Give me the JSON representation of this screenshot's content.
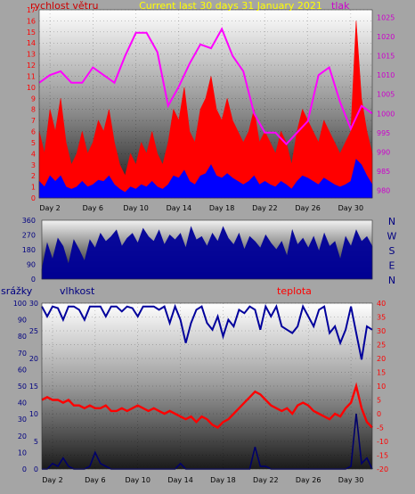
{
  "chart_data": [
    {
      "type": "line",
      "title": "Current last 30 days 31 January 2021",
      "ylabel": "rychlost větru",
      "y2label": "tlak",
      "ylim": [
        0,
        17
      ],
      "y2lim": [
        978,
        1027
      ],
      "yticks": [
        0,
        1,
        2,
        3,
        4,
        5,
        6,
        7,
        8,
        9,
        10,
        11,
        12,
        13,
        14,
        15,
        16,
        17
      ],
      "y2ticks": [
        980,
        985,
        990,
        995,
        1000,
        1005,
        1010,
        1015,
        1020,
        1025
      ],
      "xticks": [
        "Day 2",
        "Day 6",
        "Day 10",
        "Day 14",
        "Day 18",
        "Day 22",
        "Day 26",
        "Day 30"
      ],
      "xtick_days": [
        2,
        6,
        10,
        14,
        18,
        22,
        26,
        30
      ],
      "xlim": [
        1,
        32
      ],
      "series": [
        {
          "name": "rychlost větru",
          "color": "#ff0000",
          "x": [
            1.0,
            1.5,
            2.0,
            2.5,
            3.0,
            3.5,
            4.0,
            4.5,
            5.0,
            5.5,
            6.0,
            6.5,
            7.0,
            7.5,
            8.0,
            8.5,
            9.0,
            9.5,
            10.0,
            10.5,
            11.0,
            11.5,
            12.0,
            12.5,
            13.0,
            13.5,
            14.0,
            14.5,
            15.0,
            15.5,
            16.0,
            16.5,
            17.0,
            17.5,
            18.0,
            18.5,
            19.0,
            19.5,
            20.0,
            20.5,
            21.0,
            21.5,
            22.0,
            22.5,
            23.0,
            23.5,
            24.0,
            24.5,
            25.0,
            25.5,
            26.0,
            26.5,
            27.0,
            27.5,
            28.0,
            28.5,
            29.0,
            29.5,
            30.0,
            30.5,
            31.0,
            31.5,
            32.0
          ],
          "values": [
            6,
            4,
            8,
            6,
            9,
            5,
            3,
            4,
            6,
            4,
            5,
            7,
            6,
            8,
            5,
            3,
            2,
            4,
            3,
            5,
            4,
            6,
            4,
            3,
            5,
            8,
            7,
            10,
            6,
            5,
            8,
            9,
            11,
            8,
            7,
            9,
            7,
            6,
            5,
            6,
            8,
            5,
            6,
            5,
            4,
            6,
            5,
            3,
            6,
            8,
            7,
            6,
            5,
            7,
            6,
            5,
            4,
            5,
            6,
            16,
            9,
            6,
            4
          ]
        },
        {
          "name": "wind-gust-blue",
          "color": "#0000ff",
          "x": [
            1.0,
            1.5,
            2.0,
            2.5,
            3.0,
            3.5,
            4.0,
            4.5,
            5.0,
            5.5,
            6.0,
            6.5,
            7.0,
            7.5,
            8.0,
            8.5,
            9.0,
            9.5,
            10.0,
            10.5,
            11.0,
            11.5,
            12.0,
            12.5,
            13.0,
            13.5,
            14.0,
            14.5,
            15.0,
            15.5,
            16.0,
            16.5,
            17.0,
            17.5,
            18.0,
            18.5,
            19.0,
            19.5,
            20.0,
            20.5,
            21.0,
            21.5,
            22.0,
            22.5,
            23.0,
            23.5,
            24.0,
            24.5,
            25.0,
            25.5,
            26.0,
            26.5,
            27.0,
            27.5,
            28.0,
            28.5,
            29.0,
            29.5,
            30.0,
            30.5,
            31.0,
            31.5,
            32.0
          ],
          "values": [
            1.5,
            1,
            2,
            1.5,
            2,
            1,
            0.8,
            1,
            1.5,
            1,
            1.2,
            1.6,
            1.5,
            2,
            1.2,
            0.8,
            0.5,
            1,
            0.8,
            1.2,
            1,
            1.5,
            1,
            0.8,
            1.2,
            2,
            1.8,
            2.5,
            1.5,
            1.2,
            2,
            2.2,
            3,
            2,
            1.8,
            2.2,
            1.8,
            1.5,
            1.2,
            1.5,
            2,
            1.2,
            1.5,
            1.2,
            1,
            1.5,
            1.2,
            0.8,
            1.5,
            2,
            1.8,
            1.5,
            1.2,
            1.8,
            1.5,
            1.2,
            1,
            1.2,
            1.5,
            3.5,
            3,
            2,
            1.2
          ]
        },
        {
          "name": "tlak",
          "color": "#ff00ff",
          "axis": "right",
          "x": [
            1,
            2,
            3,
            4,
            5,
            6,
            7,
            8,
            9,
            10,
            11,
            12,
            13,
            14,
            15,
            16,
            17,
            18,
            19,
            20,
            21,
            22,
            23,
            24,
            25,
            26,
            27,
            28,
            29,
            30,
            31,
            32
          ],
          "values": [
            1008,
            1010,
            1011,
            1008,
            1008,
            1012,
            1010,
            1008,
            1015,
            1021,
            1021,
            1016,
            1002,
            1007,
            1013,
            1018,
            1017,
            1022,
            1015,
            1011,
            1000,
            995,
            995,
            992,
            995,
            998,
            1010,
            1012,
            1003,
            996,
            1002,
            1000
          ]
        }
      ]
    },
    {
      "type": "line",
      "title": "",
      "ylim": [
        0,
        360
      ],
      "yticks": [
        0,
        90,
        180,
        270,
        360
      ],
      "compass": [
        "N",
        "W",
        "S",
        "E",
        "N"
      ],
      "xlim": [
        1,
        32
      ],
      "series": [
        {
          "name": "wind-direction",
          "color": "#000099",
          "x": [
            1.0,
            1.5,
            2.0,
            2.5,
            3.0,
            3.5,
            4.0,
            4.5,
            5.0,
            5.5,
            6.0,
            6.5,
            7.0,
            7.5,
            8.0,
            8.5,
            9.0,
            9.5,
            10.0,
            10.5,
            11.0,
            11.5,
            12.0,
            12.5,
            13.0,
            13.5,
            14.0,
            14.5,
            15.0,
            15.5,
            16.0,
            16.5,
            17.0,
            17.5,
            18.0,
            18.5,
            19.0,
            19.5,
            20.0,
            20.5,
            21.0,
            21.5,
            22.0,
            22.5,
            23.0,
            23.5,
            24.0,
            24.5,
            25.0,
            25.5,
            26.0,
            26.5,
            27.0,
            27.5,
            28.0,
            28.5,
            29.0,
            29.5,
            30.0,
            30.5,
            31.0,
            31.5,
            32.0
          ],
          "values": [
            60,
            220,
            120,
            250,
            200,
            90,
            240,
            180,
            110,
            240,
            190,
            280,
            230,
            260,
            300,
            200,
            250,
            280,
            220,
            310,
            260,
            230,
            300,
            210,
            270,
            240,
            280,
            190,
            320,
            240,
            260,
            200,
            280,
            230,
            320,
            250,
            210,
            280,
            180,
            260,
            230,
            190,
            270,
            220,
            180,
            230,
            140,
            300,
            210,
            250,
            190,
            260,
            170,
            280,
            200,
            230,
            120,
            260,
            200,
            300,
            230,
            260,
            200
          ]
        }
      ]
    },
    {
      "type": "line",
      "title": "",
      "ylabel": "srážky",
      "y2label": "vlhkost",
      "y3label": "teplota",
      "yticks_humidity": [
        0,
        10,
        20,
        30,
        40,
        50,
        60,
        70,
        80,
        90,
        100
      ],
      "yticks_rain": [
        0,
        5,
        10,
        15,
        20,
        25,
        30
      ],
      "yticks_temp": [
        -20,
        -15,
        -10,
        -5,
        0,
        5,
        10,
        15,
        20,
        25,
        30,
        35,
        40
      ],
      "ylim_humidity": [
        0,
        100
      ],
      "ylim_rain": [
        0,
        30
      ],
      "ylim_temp": [
        -20,
        40
      ],
      "xlim": [
        1,
        32
      ],
      "series": [
        {
          "name": "vlhkost",
          "color": "#00009c",
          "x": [
            1.0,
            1.5,
            2.0,
            2.5,
            3.0,
            3.5,
            4.0,
            4.5,
            5.0,
            5.5,
            6.0,
            6.5,
            7.0,
            7.5,
            8.0,
            8.5,
            9.0,
            9.5,
            10.0,
            10.5,
            11.0,
            11.5,
            12.0,
            12.5,
            13.0,
            13.5,
            14.0,
            14.5,
            15.0,
            15.5,
            16.0,
            16.5,
            17.0,
            17.5,
            18.0,
            18.5,
            19.0,
            19.5,
            20.0,
            20.5,
            21.0,
            21.5,
            22.0,
            22.5,
            23.0,
            23.5,
            24.0,
            24.5,
            25.0,
            25.5,
            26.0,
            26.5,
            27.0,
            27.5,
            28.0,
            28.5,
            29.0,
            29.5,
            30.0,
            30.5,
            31.0,
            31.5,
            32.0
          ],
          "values": [
            98,
            92,
            98,
            97,
            90,
            98,
            98,
            96,
            90,
            98,
            98,
            98,
            92,
            98,
            98,
            95,
            98,
            97,
            92,
            98,
            98,
            98,
            96,
            98,
            88,
            98,
            90,
            76,
            88,
            96,
            98,
            88,
            84,
            92,
            80,
            90,
            86,
            96,
            94,
            98,
            96,
            84,
            98,
            92,
            98,
            86,
            84,
            82,
            86,
            98,
            92,
            86,
            96,
            98,
            82,
            86,
            76,
            84,
            98,
            82,
            66,
            86,
            84
          ]
        },
        {
          "name": "teplota",
          "color": "#ff0000",
          "x": [
            1.0,
            1.5,
            2.0,
            2.5,
            3.0,
            3.5,
            4.0,
            4.5,
            5.0,
            5.5,
            6.0,
            6.5,
            7.0,
            7.5,
            8.0,
            8.5,
            9.0,
            9.5,
            10.0,
            10.5,
            11.0,
            11.5,
            12.0,
            12.5,
            13.0,
            13.5,
            14.0,
            14.5,
            15.0,
            15.5,
            16.0,
            16.5,
            17.0,
            17.5,
            18.0,
            18.5,
            19.0,
            19.5,
            20.0,
            20.5,
            21.0,
            21.5,
            22.0,
            22.5,
            23.0,
            23.5,
            24.0,
            24.5,
            25.0,
            25.5,
            26.0,
            26.5,
            27.0,
            27.5,
            28.0,
            28.5,
            29.0,
            29.5,
            30.0,
            30.5,
            31.0,
            31.5,
            32.0
          ],
          "values": [
            5,
            6,
            5,
            5,
            4,
            5,
            3,
            3,
            2,
            3,
            2,
            2,
            3,
            1,
            1,
            2,
            1,
            2,
            3,
            2,
            1,
            2,
            1,
            0,
            1,
            0,
            -1,
            -2,
            -1,
            -3,
            -1,
            -2,
            -4,
            -5,
            -3,
            -2,
            0,
            2,
            4,
            6,
            8,
            7,
            5,
            3,
            2,
            1,
            2,
            0,
            3,
            4,
            3,
            1,
            0,
            -1,
            -2,
            0,
            -1,
            2,
            4,
            10,
            2,
            -3,
            -5
          ]
        },
        {
          "name": "srážky",
          "color": "#00006a",
          "x": [
            1.0,
            1.5,
            2.0,
            2.5,
            3.0,
            3.5,
            4.0,
            4.5,
            5.0,
            5.5,
            6.0,
            6.5,
            7.0,
            7.5,
            8.0,
            8.5,
            9.0,
            9.5,
            10.0,
            10.5,
            11.0,
            11.5,
            12.0,
            12.5,
            13.0,
            13.5,
            14.0,
            14.5,
            15.0,
            15.5,
            16.0,
            16.5,
            17.0,
            17.5,
            18.0,
            18.5,
            19.0,
            19.5,
            20.0,
            20.5,
            21.0,
            21.5,
            22.0,
            22.5,
            23.0,
            23.5,
            24.0,
            24.5,
            25.0,
            25.5,
            26.0,
            26.5,
            27.0,
            27.5,
            28.0,
            28.5,
            29.0,
            29.5,
            30.0,
            30.5,
            31.0,
            31.5,
            32.0
          ],
          "values": [
            0,
            0,
            1,
            0.5,
            2,
            0.5,
            0,
            0,
            0,
            0.5,
            3,
            1,
            0.5,
            0,
            0,
            0,
            0,
            0,
            0,
            0,
            0,
            0,
            0,
            0,
            0,
            0,
            1,
            0,
            0,
            0,
            0,
            0,
            0,
            0,
            0,
            0,
            0,
            0,
            0,
            0,
            4,
            0.5,
            0.5,
            0,
            0,
            0,
            0,
            0,
            0,
            0,
            0,
            0,
            0,
            0,
            0,
            0,
            0,
            0,
            0.5,
            10,
            1,
            2,
            0
          ]
        }
      ]
    }
  ]
}
